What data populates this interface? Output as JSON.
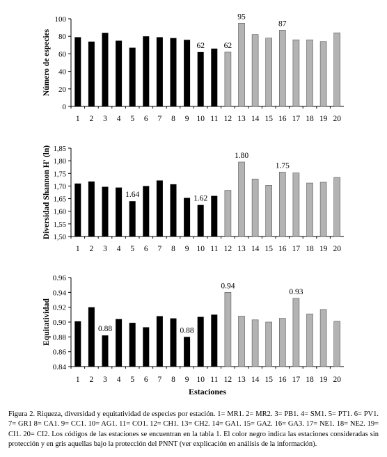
{
  "colors": {
    "unprotected": "#000000",
    "protected": "#b3b3b3",
    "protected_border": "#555555",
    "axis": "#000000"
  },
  "chart_data": [
    {
      "type": "bar",
      "xlabel": "",
      "ylabel": "Número de especies",
      "ylim": [
        0,
        100
      ],
      "yticks": [
        "0",
        "20",
        "40",
        "60",
        "80",
        "100"
      ],
      "tick_values": [
        0,
        20,
        40,
        60,
        80,
        100
      ],
      "categories": [
        "1",
        "2",
        "3",
        "4",
        "5",
        "6",
        "7",
        "8",
        "9",
        "10",
        "11",
        "12",
        "13",
        "14",
        "15",
        "16",
        "17",
        "18",
        "19",
        "20"
      ],
      "values": [
        79,
        74,
        84,
        75,
        67,
        80,
        79,
        78,
        76,
        62,
        66,
        62,
        95,
        82,
        78,
        87,
        76,
        76,
        74,
        84
      ],
      "bar_groups": [
        "unprotected",
        "unprotected",
        "unprotected",
        "unprotected",
        "unprotected",
        "unprotected",
        "unprotected",
        "unprotected",
        "unprotected",
        "unprotected",
        "unprotected",
        "protected",
        "protected",
        "protected",
        "protected",
        "protected",
        "protected",
        "protected",
        "protected",
        "protected"
      ],
      "data_labels": [
        {
          "index": 9,
          "text": "62"
        },
        {
          "index": 11,
          "text": "62"
        },
        {
          "index": 12,
          "text": "95"
        },
        {
          "index": 15,
          "text": "87"
        }
      ],
      "grid": false,
      "legend": "none"
    },
    {
      "type": "bar",
      "xlabel": "",
      "ylabel": "Diversidad Shannon H' (ln)",
      "ylim": [
        1.5,
        1.85
      ],
      "yticks": [
        "1,50",
        "1,55",
        "1,60",
        "1,65",
        "1,70",
        "1,75",
        "1,80",
        "1,85"
      ],
      "tick_values": [
        1.5,
        1.55,
        1.6,
        1.65,
        1.7,
        1.75,
        1.8,
        1.85
      ],
      "categories": [
        "1",
        "2",
        "3",
        "4",
        "5",
        "6",
        "7",
        "8",
        "9",
        "10",
        "11",
        "12",
        "13",
        "14",
        "15",
        "16",
        "17",
        "18",
        "19",
        "20"
      ],
      "values": [
        1.71,
        1.718,
        1.697,
        1.694,
        1.64,
        1.7,
        1.722,
        1.707,
        1.653,
        1.625,
        1.661,
        1.683,
        1.795,
        1.728,
        1.703,
        1.755,
        1.752,
        1.712,
        1.715,
        1.734
      ],
      "bar_groups": [
        "unprotected",
        "unprotected",
        "unprotected",
        "unprotected",
        "unprotected",
        "unprotected",
        "unprotected",
        "unprotected",
        "unprotected",
        "unprotected",
        "unprotected",
        "protected",
        "protected",
        "protected",
        "protected",
        "protected",
        "protected",
        "protected",
        "protected",
        "protected"
      ],
      "data_labels": [
        {
          "index": 4,
          "text": "1.64"
        },
        {
          "index": 9,
          "text": "1.62"
        },
        {
          "index": 12,
          "text": "1.80"
        },
        {
          "index": 15,
          "text": "1.75"
        }
      ],
      "grid": false,
      "legend": "none"
    },
    {
      "type": "bar",
      "xlabel": "Estaciones",
      "ylabel": "Equitatividad",
      "ylim": [
        0.84,
        0.96
      ],
      "yticks": [
        "0.84",
        "0.86",
        "0.88",
        "0.90",
        "0.92",
        "0.94",
        "0.96"
      ],
      "tick_values": [
        0.84,
        0.86,
        0.88,
        0.9,
        0.92,
        0.94,
        0.96
      ],
      "categories": [
        "1",
        "2",
        "3",
        "4",
        "5",
        "6",
        "7",
        "8",
        "9",
        "10",
        "11",
        "12",
        "13",
        "14",
        "15",
        "16",
        "17",
        "18",
        "19",
        "20"
      ],
      "values": [
        0.901,
        0.92,
        0.882,
        0.904,
        0.899,
        0.893,
        0.908,
        0.905,
        0.88,
        0.907,
        0.91,
        0.94,
        0.908,
        0.903,
        0.9,
        0.905,
        0.932,
        0.911,
        0.917,
        0.901
      ],
      "bar_groups": [
        "unprotected",
        "unprotected",
        "unprotected",
        "unprotected",
        "unprotected",
        "unprotected",
        "unprotected",
        "unprotected",
        "unprotected",
        "unprotected",
        "unprotected",
        "protected",
        "protected",
        "protected",
        "protected",
        "protected",
        "protected",
        "protected",
        "protected",
        "protected"
      ],
      "data_labels": [
        {
          "index": 2,
          "text": "0.88"
        },
        {
          "index": 8,
          "text": "0.88"
        },
        {
          "index": 11,
          "text": "0.94"
        },
        {
          "index": 16,
          "text": "0.93"
        }
      ],
      "grid": false,
      "legend": "none"
    }
  ],
  "caption": "Figura 2. Riqueza, diversidad y equitatividad de especies por estación. 1= MR1. 2= MR2. 3= PB1. 4= SM1. 5= PT1. 6= PV1. 7= GR1 8= CA1. 9= CC1. 10= AG1. 11= CO1. 12= CH1. 13= CH2. 14= GA1. 15= GA2. 16= GA3. 17= NE1. 18= NE2. 19= CI1. 20= CI2. Los códigos de las estaciones se encuentran en la tabla 1. El color negro indica las estaciones consideradas sin protección y en gris aquellas bajo la protección del PNNT (ver explicación en análisis de la información)."
}
